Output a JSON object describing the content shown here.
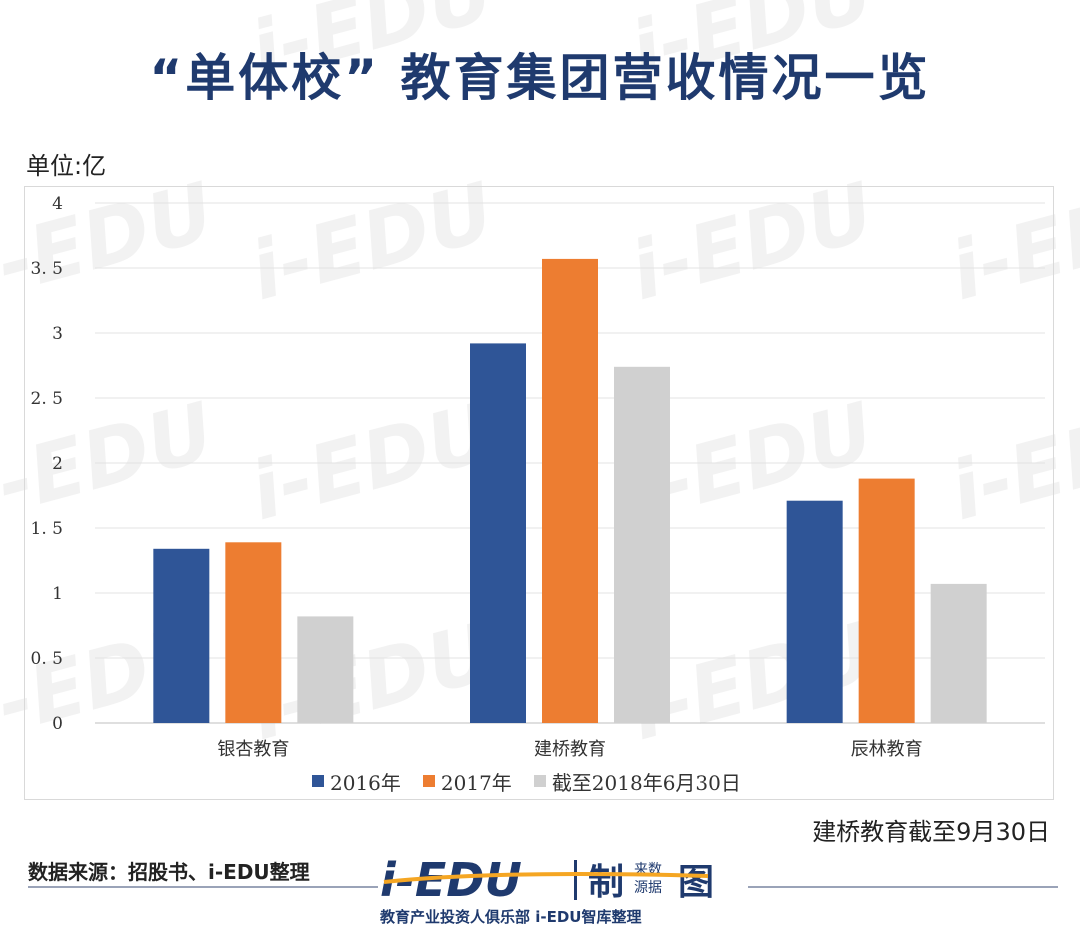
{
  "title": "“单体校” 教育集团营收情况一览",
  "unit_label": "单位:亿",
  "note": "建桥教育截至9月30日",
  "source": "数据来源：招股书、i-EDU整理",
  "logo": {
    "main_text": "i-EDU",
    "sub_text": "制",
    "small_text_1": "来数",
    "small_text_2": "源据",
    "icon_text": "图",
    "tagline": "教育产业投资人俱乐部  i-EDU智库整理"
  },
  "colors": {
    "title": "#1f3a6e",
    "s2016": "#2f5597",
    "s2017": "#ed7d31",
    "s2018": "#d0d0d0"
  },
  "chart_data": {
    "type": "bar",
    "categories": [
      "银杏教育",
      "建桥教育",
      "辰林教育"
    ],
    "series": [
      {
        "name": "2016年",
        "values": [
          1.34,
          2.92,
          1.71
        ]
      },
      {
        "name": "2017年",
        "values": [
          1.39,
          3.57,
          1.88
        ]
      },
      {
        "name": "截至2018年6月30日",
        "values": [
          0.82,
          2.74,
          1.07
        ]
      }
    ],
    "ylim": [
      0,
      4
    ],
    "yticks": [
      "0",
      "0. 5",
      "1",
      "1. 5",
      "2",
      "2. 5",
      "3",
      "3. 5",
      "4"
    ],
    "grid": true,
    "legend": "bottom"
  }
}
